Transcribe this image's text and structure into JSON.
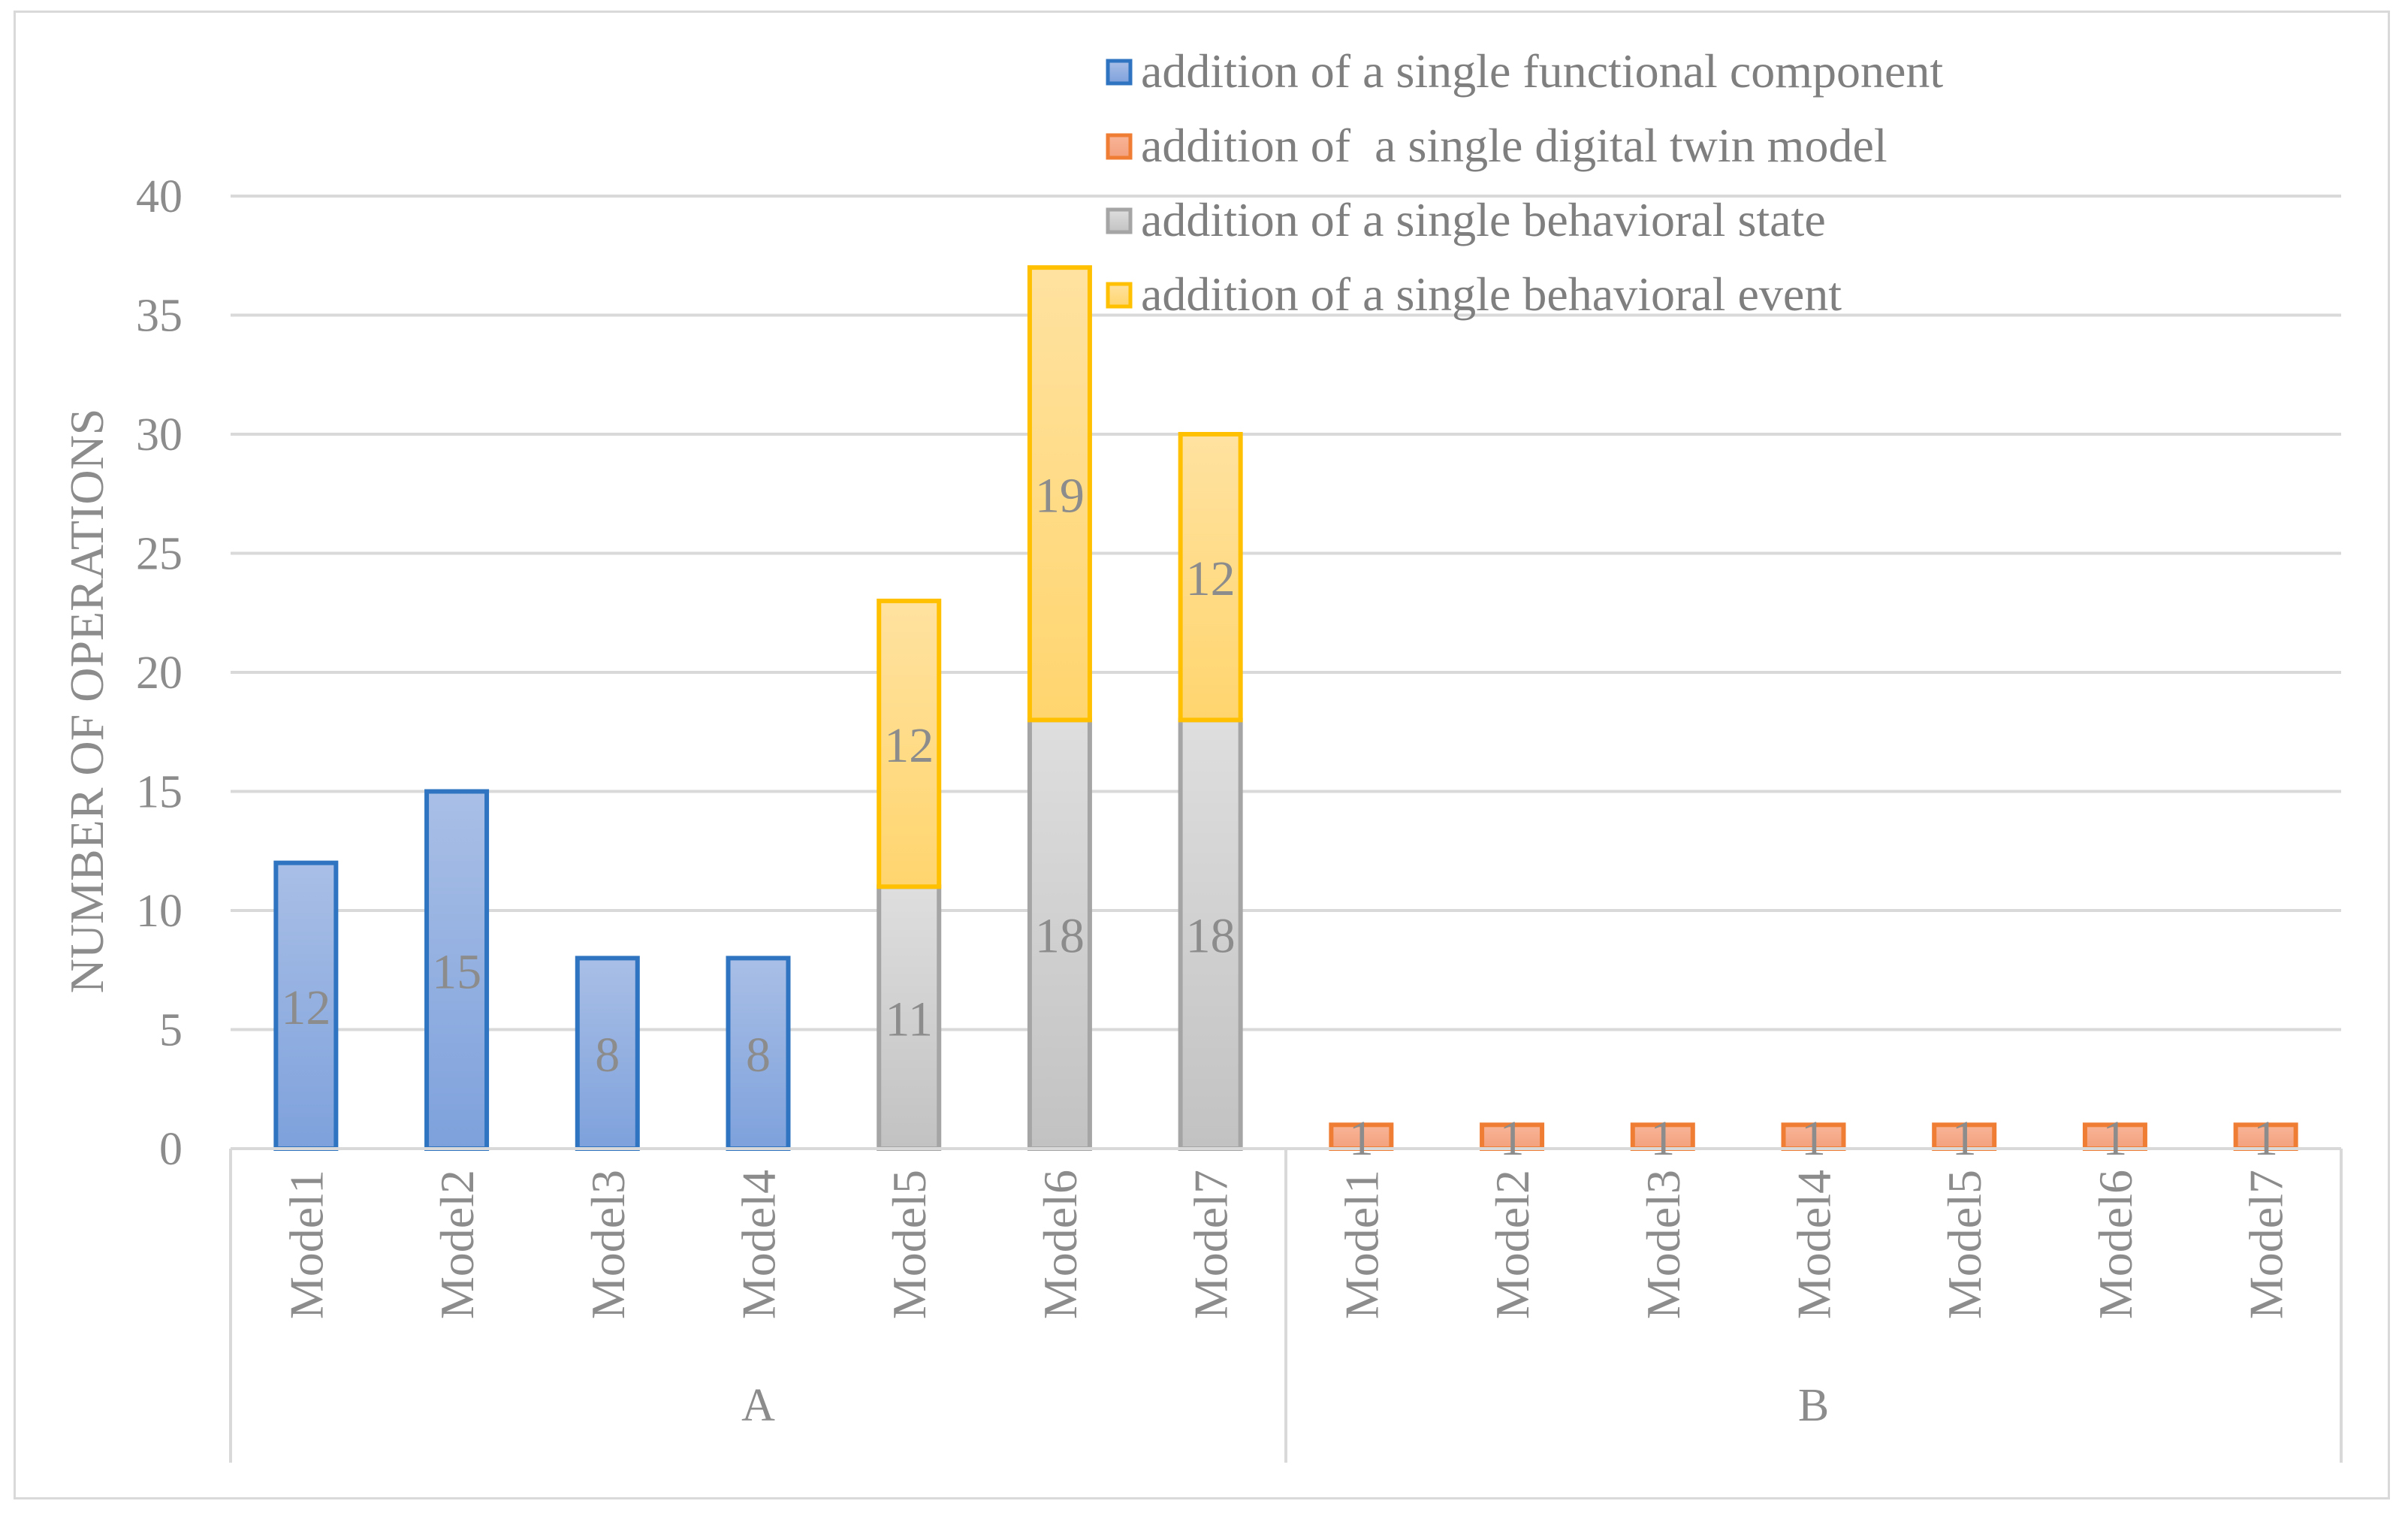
{
  "chart_data": {
    "type": "bar",
    "stacked": true,
    "title": "",
    "xlabel": "",
    "ylabel": "NUMBER OF OPERATIONS",
    "ylim": [
      0,
      40
    ],
    "yticks": [
      0,
      5,
      10,
      15,
      20,
      25,
      30,
      35,
      40
    ],
    "grid": true,
    "legend_position": "top-right",
    "groups": [
      {
        "name": "A",
        "categories": [
          "Model1",
          "Model2",
          "Model3",
          "Model4",
          "Model5",
          "Model6",
          "Model7"
        ]
      },
      {
        "name": "B",
        "categories": [
          "Model1",
          "Model2",
          "Model3",
          "Model4",
          "Model5",
          "Model6",
          "Model7"
        ]
      }
    ],
    "series": [
      {
        "name": "addition of a single functional component",
        "fill_top": "#a9bfe6",
        "fill_bottom": "#7ea1dc",
        "stroke": "#2e74c0",
        "values": [
          12,
          15,
          8,
          8,
          0,
          0,
          0,
          0,
          0,
          0,
          0,
          0,
          0,
          0
        ]
      },
      {
        "name": "addition of  a single digital twin model",
        "fill_top": "#f8b598",
        "fill_bottom": "#f3a07c",
        "stroke": "#ef7d33",
        "values": [
          0,
          0,
          0,
          0,
          0,
          0,
          0,
          1,
          1,
          1,
          1,
          1,
          1,
          1
        ]
      },
      {
        "name": "addition of a single behavioral state",
        "fill_top": "#dedede",
        "fill_bottom": "#c2c2c2",
        "stroke": "#a5a5a5",
        "values": [
          0,
          0,
          0,
          0,
          11,
          18,
          18,
          0,
          0,
          0,
          0,
          0,
          0,
          0
        ]
      },
      {
        "name": "addition of a single behavioral event",
        "fill_top": "#ffe2a0",
        "fill_bottom": "#ffd56e",
        "stroke": "#ffc000",
        "values": [
          0,
          0,
          0,
          0,
          12,
          19,
          12,
          0,
          0,
          0,
          0,
          0,
          0,
          0
        ]
      }
    ]
  }
}
